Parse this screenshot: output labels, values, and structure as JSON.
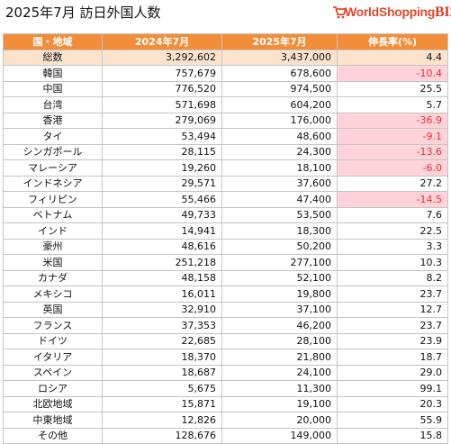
{
  "title": "2025年7月 訪日外国人数",
  "logo": {
    "text_main": "WorldShopping",
    "text_biz": "BIZ",
    "icon": "shopping-cart-icon"
  },
  "colors": {
    "header": "#f28d3a",
    "total_row": "#fde3cc",
    "negative_bg": "#ffd3d9",
    "negative_text": "#e0313b"
  },
  "table": {
    "headers": [
      "国・地域",
      "2024年7月",
      "2025年7月",
      "伸長率(%)"
    ],
    "rows": [
      {
        "country": "総数",
        "y2024": "3,292,602",
        "y2025": "3,437,000",
        "growth": "4.4",
        "total": true
      },
      {
        "country": "韓国",
        "y2024": "757,679",
        "y2025": "678,600",
        "growth": "-10.4"
      },
      {
        "country": "中国",
        "y2024": "776,520",
        "y2025": "974,500",
        "growth": "25.5"
      },
      {
        "country": "台湾",
        "y2024": "571,698",
        "y2025": "604,200",
        "growth": "5.7"
      },
      {
        "country": "香港",
        "y2024": "279,069",
        "y2025": "176,000",
        "growth": "-36.9"
      },
      {
        "country": "タイ",
        "y2024": "53,494",
        "y2025": "48,600",
        "growth": "-9.1"
      },
      {
        "country": "シンガポール",
        "y2024": "28,115",
        "y2025": "24,300",
        "growth": "-13.6"
      },
      {
        "country": "マレーシア",
        "y2024": "19,260",
        "y2025": "18,100",
        "growth": "-6.0"
      },
      {
        "country": "インドネシア",
        "y2024": "29,571",
        "y2025": "37,600",
        "growth": "27.2"
      },
      {
        "country": "フィリピン",
        "y2024": "55,466",
        "y2025": "47,400",
        "growth": "-14.5"
      },
      {
        "country": "ベトナム",
        "y2024": "49,733",
        "y2025": "53,500",
        "growth": "7.6"
      },
      {
        "country": "インド",
        "y2024": "14,941",
        "y2025": "18,300",
        "growth": "22.5"
      },
      {
        "country": "豪州",
        "y2024": "48,616",
        "y2025": "50,200",
        "growth": "3.3"
      },
      {
        "country": "米国",
        "y2024": "251,218",
        "y2025": "277,100",
        "growth": "10.3"
      },
      {
        "country": "カナダ",
        "y2024": "48,158",
        "y2025": "52,100",
        "growth": "8.2"
      },
      {
        "country": "メキシコ",
        "y2024": "16,011",
        "y2025": "19,800",
        "growth": "23.7"
      },
      {
        "country": "英国",
        "y2024": "32,910",
        "y2025": "37,100",
        "growth": "12.7"
      },
      {
        "country": "フランス",
        "y2024": "37,353",
        "y2025": "46,200",
        "growth": "23.7"
      },
      {
        "country": "ドイツ",
        "y2024": "22,685",
        "y2025": "28,100",
        "growth": "23.9"
      },
      {
        "country": "イタリア",
        "y2024": "18,370",
        "y2025": "21,800",
        "growth": "18.7"
      },
      {
        "country": "スペイン",
        "y2024": "18,687",
        "y2025": "24,100",
        "growth": "29.0"
      },
      {
        "country": "ロシア",
        "y2024": "5,675",
        "y2025": "11,300",
        "growth": "99.1"
      },
      {
        "country": "北欧地域",
        "y2024": "15,871",
        "y2025": "19,100",
        "growth": "20.3"
      },
      {
        "country": "中東地域",
        "y2024": "12,826",
        "y2025": "20,000",
        "growth": "55.9"
      },
      {
        "country": "その他",
        "y2024": "128,676",
        "y2025": "149,000",
        "growth": "15.8"
      }
    ]
  }
}
